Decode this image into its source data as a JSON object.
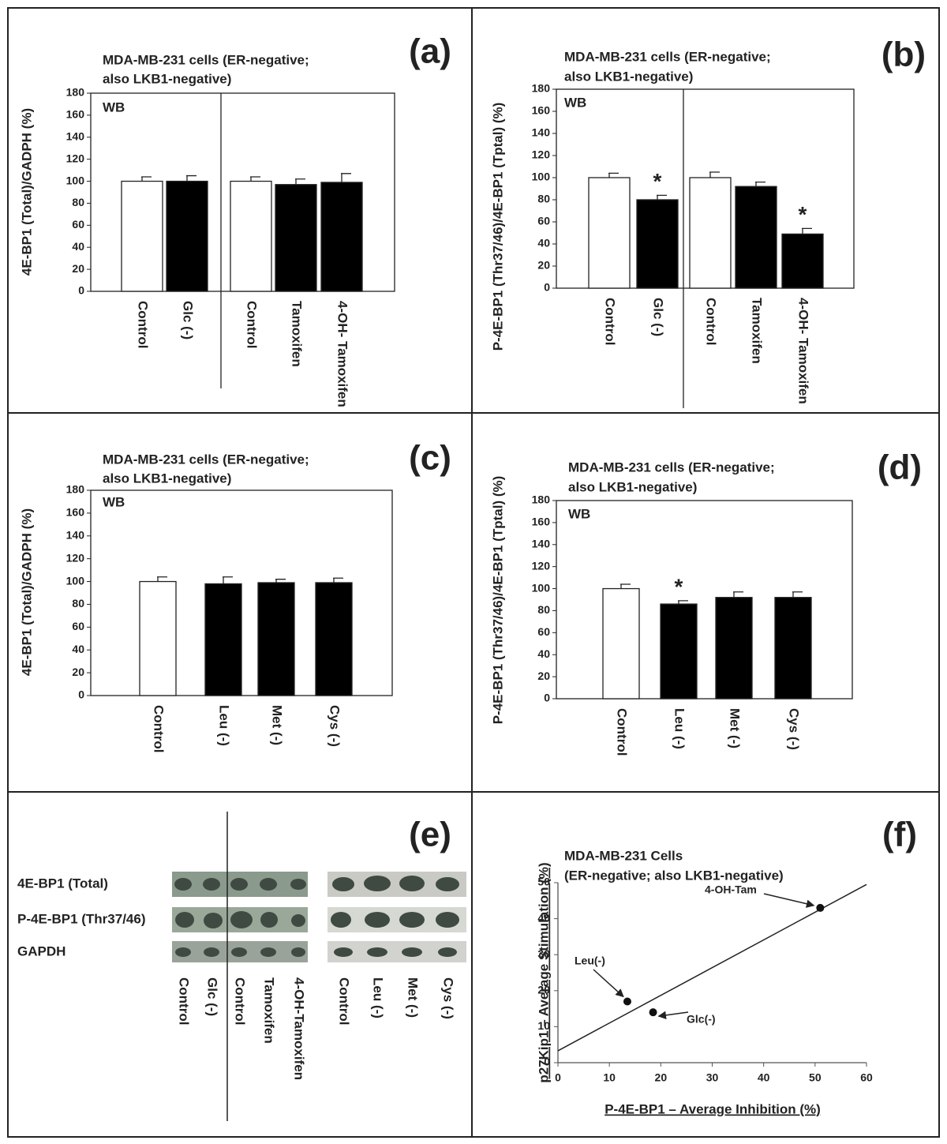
{
  "chart_data": [
    {
      "type": "bar",
      "panel_label": "(a)",
      "title": [
        "MDA-MB-231 cells (ER-negative;",
        "also LKB1-negative)"
      ],
      "annotation": "WB",
      "ylabel": "4E-BP1 (Total)/GADPH (%)",
      "categories": [
        "Control",
        "Glc (-)",
        "Control",
        "Tamoxifen",
        "4-OH- Tamoxifen"
      ],
      "values": [
        100,
        100,
        100,
        97,
        99
      ],
      "errors": [
        4,
        5,
        4,
        5,
        8
      ],
      "colors": [
        "#ffffff",
        "#000000",
        "#ffffff",
        "#000000",
        "#000000"
      ],
      "divider_after": 1,
      "ylim": [
        0,
        180
      ],
      "yticks": [
        0,
        20,
        40,
        60,
        80,
        100,
        120,
        140,
        160,
        180
      ]
    },
    {
      "type": "bar",
      "panel_label": "(b)",
      "title": [
        "MDA-MB-231 cells (ER-negative;",
        "also LKB1-negative)"
      ],
      "annotation": "WB",
      "ylabel": "P-4E-BP1 (Thr37/46)/4E-BP1 (Tptal) (%)",
      "categories": [
        "Control",
        "Glc (-)",
        "Control",
        "Tamoxifen",
        "4-OH- Tamoxifen"
      ],
      "values": [
        100,
        80,
        100,
        92,
        49
      ],
      "errors": [
        4,
        4,
        5,
        4,
        5
      ],
      "markers": [
        null,
        "*",
        null,
        null,
        "*"
      ],
      "colors": [
        "#ffffff",
        "#000000",
        "#ffffff",
        "#000000",
        "#000000"
      ],
      "divider_after": 1,
      "ylim": [
        0,
        180
      ],
      "yticks": [
        0,
        20,
        40,
        60,
        80,
        100,
        120,
        140,
        160,
        180
      ]
    },
    {
      "type": "bar",
      "panel_label": "(c)",
      "title": [
        "MDA-MB-231 cells (ER-negative;",
        "also LKB1-negative)"
      ],
      "annotation": "WB",
      "ylabel": "4E-BP1 (Total)/GADPH (%)",
      "categories": [
        "Control",
        "Leu (-)",
        "Met (-)",
        "Cys (-)"
      ],
      "values": [
        100,
        98,
        99,
        99
      ],
      "errors": [
        4,
        6,
        3,
        4
      ],
      "colors": [
        "#ffffff",
        "#000000",
        "#000000",
        "#000000"
      ],
      "ylim": [
        0,
        180
      ],
      "yticks": [
        0,
        20,
        40,
        60,
        80,
        100,
        120,
        140,
        160,
        180
      ]
    },
    {
      "type": "bar",
      "panel_label": "(d)",
      "title": [
        "MDA-MB-231 cells (ER-negative;",
        "also LKB1-negative)"
      ],
      "annotation": "WB",
      "ylabel": "P-4E-BP1 (Thr37/46)/4E-BP1 (Tptal) (%)",
      "categories": [
        "Control",
        "Leu (-)",
        "Met (-)",
        "Cys (-)"
      ],
      "values": [
        100,
        86,
        92,
        92
      ],
      "errors": [
        4,
        3,
        5,
        5
      ],
      "markers": [
        null,
        "*",
        null,
        null
      ],
      "colors": [
        "#ffffff",
        "#000000",
        "#000000",
        "#000000"
      ],
      "ylim": [
        0,
        180
      ],
      "yticks": [
        0,
        20,
        40,
        60,
        80,
        100,
        120,
        140,
        160,
        180
      ]
    },
    {
      "type": "scatter",
      "panel_label": "(f)",
      "title": [
        "MDA-MB-231 Cells",
        "(ER-negative; also LKB1-negative)"
      ],
      "xlabel": "P-4E-BP1 – Average Inhibition (%)",
      "ylabel": "p27Kip1 – Average Stimulation (%)",
      "x": [
        51,
        13.5,
        18.5
      ],
      "y": [
        43,
        17,
        14
      ],
      "point_labels": [
        "4-OH-Tam",
        "Leu(-)",
        "Glc(-)"
      ],
      "trendline": {
        "x": [
          0,
          60
        ],
        "y": [
          3.3,
          49.5
        ]
      },
      "xlim": [
        0,
        60
      ],
      "xticks": [
        0,
        10,
        20,
        30,
        40,
        50,
        60
      ],
      "ylim": [
        0,
        50
      ],
      "yticks": [
        0,
        10,
        20,
        30,
        40,
        50
      ]
    }
  ],
  "blot_panel": {
    "panel_label": "(e)",
    "rows": [
      "4E-BP1 (Total)",
      "P-4E-BP1 (Thr37/46)",
      "GAPDH"
    ],
    "lanes_left": [
      "Control",
      "Glc (-)",
      "Control",
      "Tamoxifen",
      "4-OH-Tamoxifen"
    ],
    "lanes_right": [
      "Control",
      "Leu (-)",
      "Met (-)",
      "Cys (-)"
    ]
  }
}
